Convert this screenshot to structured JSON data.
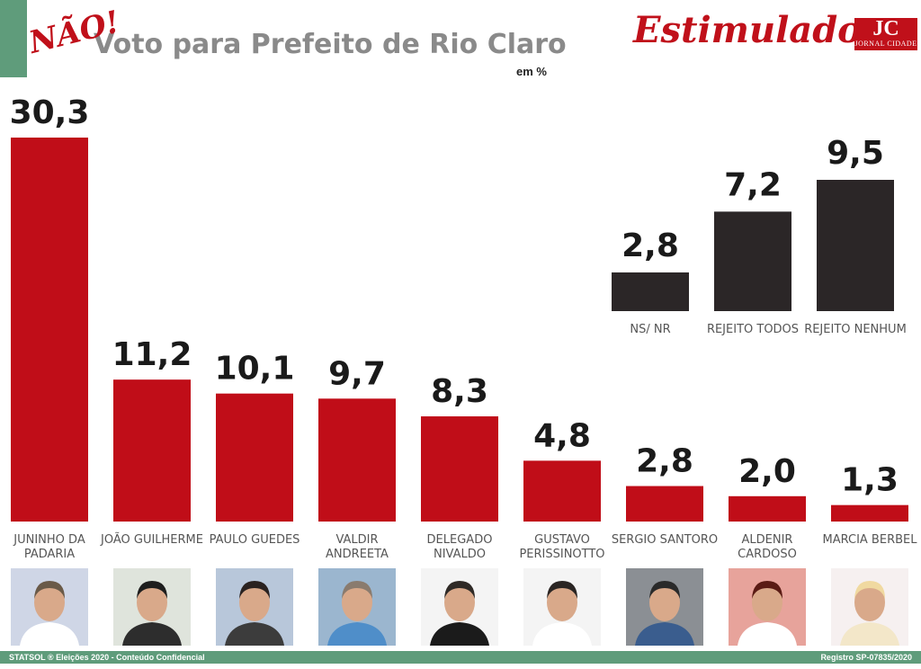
{
  "header": {
    "title": "Voto para Prefeito de Rio Claro",
    "stamp": "NÃO!",
    "unit": "em %",
    "mode": "Estimulado",
    "logo_main": "JC",
    "logo_sub": "JORNAL CIDADE"
  },
  "colors": {
    "candidate_bar": "#c00d18",
    "other_bar": "#2b2627",
    "footer": "#5f9c7b",
    "accent": "#c0101a"
  },
  "chart_data": {
    "type": "bar",
    "title": "Voto para Prefeito de Rio Claro",
    "ylabel": "em %",
    "ylim": [
      0,
      30.3
    ],
    "candidates": {
      "categories": [
        "JUNINHO DA PADARIA",
        "JOÃO GUILHERME",
        "PAULO GUEDES",
        "VALDIR ANDREETA",
        "DELEGADO NIVALDO",
        "GUSTAVO PERISSINOTTO",
        "SERGIO SANTORO",
        "ALDENIR CARDOSO",
        "MARCIA BERBEL"
      ],
      "label_lines": [
        [
          "JUNINHO DA",
          "PADARIA"
        ],
        [
          "JOÃO GUILHERME"
        ],
        [
          "PAULO GUEDES"
        ],
        [
          "VALDIR",
          "ANDREETA"
        ],
        [
          "DELEGADO",
          "NIVALDO"
        ],
        [
          "GUSTAVO",
          "PERISSINOTTO"
        ],
        [
          "SERGIO SANTORO"
        ],
        [
          "ALDENIR",
          "CARDOSO"
        ],
        [
          "MARCIA BERBEL"
        ]
      ],
      "values": [
        30.3,
        11.2,
        10.1,
        9.7,
        8.3,
        4.8,
        2.8,
        2.0,
        1.3
      ],
      "value_labels": [
        "30,3",
        "11,2",
        "10,1",
        "9,7",
        "8,3",
        "4,8",
        "2,8",
        "2,0",
        "1,3"
      ]
    },
    "others": {
      "categories": [
        "NS/ NR",
        "REJEITO TODOS",
        "REJEITO NENHUM"
      ],
      "values": [
        2.8,
        7.2,
        9.5
      ],
      "value_labels": [
        "2,8",
        "7,2",
        "9,5"
      ]
    }
  },
  "footer": {
    "left": "STATSOL ® Eleições 2020 - Conteúdo Confidencial",
    "right": "Registro SP-07835/2020"
  }
}
